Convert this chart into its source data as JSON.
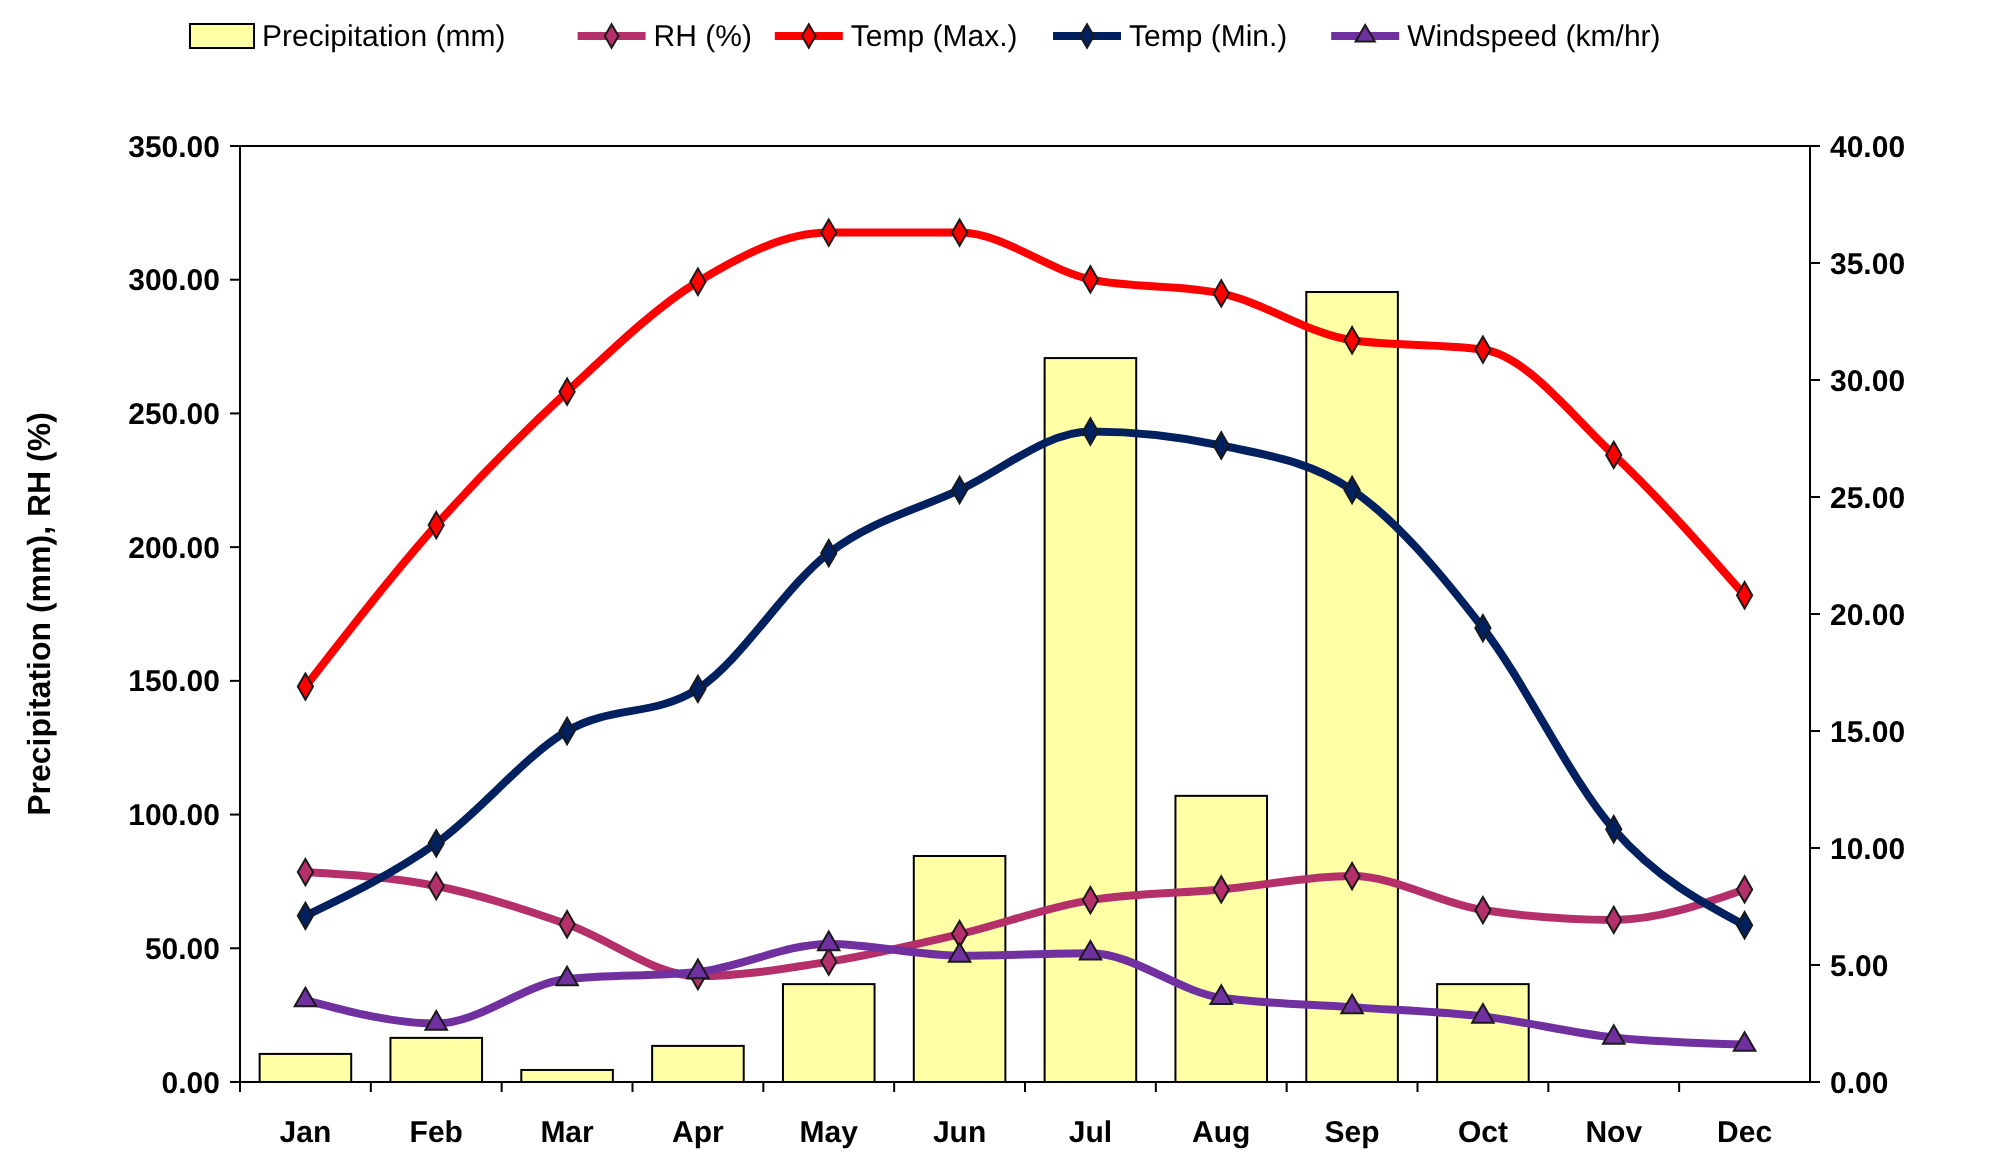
{
  "chart_data": {
    "type": "bar",
    "categories": [
      "Jan",
      "Feb",
      "Mar",
      "Apr",
      "May",
      "Jun",
      "Jul",
      "Aug",
      "Sep",
      "Oct",
      "Nov",
      "Dec"
    ],
    "ylabel": "Precipitation (mm), RH (%)",
    "ylim": [
      0,
      350
    ],
    "yticks": [
      {
        "value": 0,
        "label": "0.00"
      },
      {
        "value": 50,
        "label": "50.00"
      },
      {
        "value": 100,
        "label": "100.00"
      },
      {
        "value": 150,
        "label": "150.00"
      },
      {
        "value": 200,
        "label": "200.00"
      },
      {
        "value": 250,
        "label": "250.00"
      },
      {
        "value": 300,
        "label": "300.00"
      },
      {
        "value": 350,
        "label": "350.00"
      }
    ],
    "y2lim": [
      0,
      40
    ],
    "y2ticks": [
      {
        "value": 0,
        "label": "0.00"
      },
      {
        "value": 5,
        "label": "5.00"
      },
      {
        "value": 10,
        "label": "10.00"
      },
      {
        "value": 15,
        "label": "15.00"
      },
      {
        "value": 20,
        "label": "20.00"
      },
      {
        "value": 25,
        "label": "25.00"
      },
      {
        "value": 30,
        "label": "30.00"
      },
      {
        "value": 35,
        "label": "35.00"
      },
      {
        "value": 40,
        "label": "40.00"
      }
    ],
    "legend": "top",
    "grid": false,
    "series": [
      {
        "name": "Precipitation (mm)",
        "color": "#ffffa6",
        "values": [
          10.5,
          16.5,
          4.5,
          13.5,
          36.6,
          84.5,
          270.7,
          107,
          295.4,
          36.6,
          0,
          0
        ]
      },
      {
        "name": "RH (%)",
        "type": "line",
        "marker": "diamond",
        "color": "#b5306b",
        "values": [
          78.5,
          73.3,
          59,
          39.6,
          45,
          55.3,
          68,
          72,
          77,
          64.3,
          60.6,
          72
        ]
      },
      {
        "name": "Temp (Max.)",
        "type": "line",
        "marker": "diamond",
        "axis": "y2",
        "color": "#ff0000",
        "values": [
          16.9,
          23.8,
          29.5,
          34.2,
          36.3,
          36.3,
          34.3,
          33.7,
          31.7,
          31.3,
          26.8,
          20.8
        ]
      },
      {
        "name": "Temp (Min.)",
        "type": "line",
        "marker": "diamond",
        "axis": "y2",
        "color": "#002060",
        "values": [
          7.1,
          10.2,
          15.0,
          16.8,
          22.6,
          25.3,
          27.8,
          27.2,
          25.3,
          19.4,
          10.8,
          6.7
        ]
      },
      {
        "name": "Windspeed (km/hr)",
        "type": "line",
        "marker": "triangle",
        "axis": "y2",
        "color": "#7030a0",
        "values": [
          3.5,
          2.5,
          4.4,
          4.7,
          5.9,
          5.4,
          5.5,
          3.6,
          3.2,
          2.8,
          1.9,
          1.6
        ]
      }
    ]
  }
}
